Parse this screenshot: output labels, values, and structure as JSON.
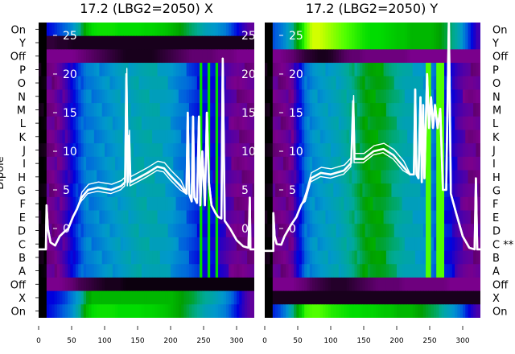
{
  "chart_data": [
    {
      "type": "heatmap",
      "title": "17.2 (LBG2=2050) X",
      "ylabel": "Dipole",
      "row_labels": [
        "On",
        "Y",
        "Off",
        "P",
        "O",
        "N",
        "M",
        "L",
        "K",
        "J",
        "I",
        "H",
        "G",
        "F",
        "E",
        "D",
        "C",
        "B",
        "A",
        "Off",
        "X",
        "On"
      ],
      "x_ticks": [
        0,
        50,
        100,
        150,
        200,
        250,
        300
      ],
      "xlim": [
        0,
        328
      ],
      "overlay_y_ticks": [
        0,
        5,
        10,
        15,
        20,
        25
      ],
      "overlay_ylim": [
        -11.5,
        26.5
      ],
      "profile_x": [
        0,
        10,
        20,
        30,
        40,
        50,
        60,
        70,
        80,
        90,
        100,
        110,
        120,
        130,
        140,
        150,
        160,
        170,
        180,
        190,
        200,
        210,
        220,
        230,
        240,
        250,
        260,
        270,
        280,
        290,
        300,
        310,
        320,
        330
      ],
      "row_profiles": {
        "on": [
          0,
          0.2,
          0.22,
          0.25,
          0.28,
          0.32,
          0.4,
          0.5,
          0.55,
          0.56,
          0.56,
          0.56,
          0.55,
          0.55,
          0.55,
          0.55,
          0.54,
          0.54,
          0.53,
          0.52,
          0.5,
          0.48,
          0.45,
          0.42,
          0.4,
          0.36,
          0.34,
          0.32,
          0.3,
          0.25,
          0.2,
          0.15,
          0.12,
          0.12
        ],
        "y": [
          0,
          0.04,
          0.04,
          0.03,
          0.03,
          0.02,
          0.02,
          0.02,
          0.02,
          0.02,
          0.02,
          0.02,
          0.02,
          0.02,
          0.02,
          0.02,
          0.02,
          0.02,
          0.02,
          0.02,
          0.02,
          0.02,
          0.02,
          0.02,
          0.02,
          0.02,
          0.02,
          0.02,
          0.02,
          0.02,
          0.02,
          0.02,
          0.02,
          0.02
        ],
        "off": [
          0,
          0.1,
          0.1,
          0.1,
          0.1,
          0.1,
          0.09,
          0.08,
          0.07,
          0.06,
          0.05,
          0.04,
          0.03,
          0.02,
          0.02,
          0.02,
          0.02,
          0.02,
          0.03,
          0.04,
          0.05,
          0.06,
          0.07,
          0.08,
          0.08,
          0.08,
          0.08,
          0.09,
          0.09,
          0.09,
          0.1,
          0.1,
          0.1,
          0.1
        ],
        "body": [
          0,
          0.1,
          0.1,
          0.12,
          0.15,
          0.2,
          0.25,
          0.3,
          0.3,
          0.31,
          0.32,
          0.33,
          0.34,
          0.35,
          0.36,
          0.37,
          0.37,
          0.37,
          0.36,
          0.35,
          0.33,
          0.3,
          0.28,
          0.25,
          0.22,
          0.2,
          0.2,
          0.18,
          0.15,
          0.12,
          0.1,
          0.1,
          0.1,
          0.1
        ],
        "off2": [
          0,
          0.1,
          0.1,
          0.1,
          0.09,
          0.08,
          0.06,
          0.05,
          0.04,
          0.03,
          0.02,
          0.02,
          0.02,
          0.01,
          0.01,
          0.01,
          0.01,
          0.01,
          0.01,
          0.01,
          0.01,
          0.01,
          0.01,
          0.01,
          0.01,
          0.01,
          0.01,
          0.01,
          0.01,
          0.01,
          0.01,
          0.01,
          0.01,
          0.01
        ],
        "x": [
          0,
          0.2,
          0.2,
          0.22,
          0.25,
          0.3,
          0.35,
          0.45,
          0.5,
          0.5,
          0.5,
          0.5,
          0.5,
          0.5,
          0.5,
          0.5,
          0.5,
          0.5,
          0.5,
          0.5,
          0.5,
          0.48,
          0.46,
          0.45,
          0.42,
          0.4,
          0.38,
          0.35,
          0.32,
          0.28,
          0.22,
          0.15,
          0.12,
          0.12
        ]
      },
      "row_groups": [
        "on",
        "y",
        "off",
        "body",
        "body",
        "body",
        "body",
        "body",
        "body",
        "body",
        "body",
        "body",
        "body",
        "body",
        "body",
        "body",
        "body",
        "body",
        "body",
        "off2",
        "x",
        "on"
      ],
      "streak_x": [
        244,
        250,
        256,
        262,
        268
      ],
      "streak_value": 0.55,
      "overlay": [
        [
          0,
          -2.7
        ],
        [
          11,
          -2.7
        ],
        [
          12,
          3
        ],
        [
          14,
          0
        ],
        [
          18,
          -1.8
        ],
        [
          25,
          -2.2
        ],
        [
          32,
          -1
        ],
        [
          38,
          -0.5
        ],
        [
          45,
          0
        ],
        [
          52,
          1.5
        ],
        [
          58,
          2.5
        ],
        [
          65,
          4
        ],
        [
          75,
          5
        ],
        [
          90,
          5.3
        ],
        [
          110,
          5
        ],
        [
          125,
          5.5
        ],
        [
          131,
          6
        ],
        [
          133,
          20
        ],
        [
          135,
          6
        ],
        [
          137,
          12
        ],
        [
          139,
          6
        ],
        [
          150,
          6.5
        ],
        [
          165,
          7.2
        ],
        [
          180,
          8
        ],
        [
          190,
          7.8
        ],
        [
          200,
          6.8
        ],
        [
          215,
          5.5
        ],
        [
          224,
          4.5
        ],
        [
          226,
          15
        ],
        [
          228,
          4.5
        ],
        [
          232,
          3.5
        ],
        [
          234,
          14.5
        ],
        [
          236,
          4
        ],
        [
          240,
          3.3
        ],
        [
          243,
          14.5
        ],
        [
          245,
          3
        ],
        [
          248,
          10
        ],
        [
          252,
          3
        ],
        [
          255,
          15
        ],
        [
          258,
          6
        ],
        [
          262,
          3
        ],
        [
          268,
          2
        ],
        [
          272,
          1.5
        ],
        [
          277,
          1.3
        ],
        [
          279,
          22
        ],
        [
          282,
          1
        ],
        [
          290,
          0
        ],
        [
          300,
          -1.5
        ],
        [
          310,
          -2.3
        ],
        [
          318,
          -2.5
        ],
        [
          320,
          4
        ],
        [
          321,
          -2.7
        ],
        [
          328,
          -2.7
        ]
      ]
    },
    {
      "type": "heatmap",
      "title": "17.2 (LBG2=2050) Y",
      "row_labels": [
        "On",
        "Y",
        "Off",
        "P",
        "O",
        "N",
        "M",
        "L",
        "K",
        "J",
        "I",
        "H",
        "G",
        "F",
        "E",
        "D",
        "C **",
        "B",
        "A",
        "Off",
        "X",
        "On"
      ],
      "x_ticks": [
        0,
        50,
        100,
        150,
        200,
        250,
        300
      ],
      "xlim": [
        0,
        328
      ],
      "overlay_y_ticks": [
        0,
        5,
        10,
        15,
        20,
        25
      ],
      "overlay_ylim": [
        -11.5,
        26.5
      ],
      "profile_x": [
        0,
        10,
        20,
        30,
        40,
        50,
        60,
        70,
        80,
        90,
        100,
        110,
        120,
        130,
        140,
        150,
        160,
        170,
        180,
        190,
        200,
        210,
        220,
        230,
        240,
        250,
        260,
        270,
        280,
        290,
        300,
        310,
        320,
        330
      ],
      "row_profiles": {
        "on": [
          0,
          0.25,
          0.28,
          0.32,
          0.4,
          0.5,
          0.62,
          0.7,
          0.7,
          0.68,
          0.66,
          0.64,
          0.62,
          0.6,
          0.58,
          0.56,
          0.55,
          0.55,
          0.54,
          0.53,
          0.52,
          0.52,
          0.5,
          0.5,
          0.5,
          0.5,
          0.48,
          0.45,
          0.42,
          0.38,
          0.3,
          0.22,
          0.15,
          0.15
        ],
        "y": [
          0,
          0.25,
          0.28,
          0.32,
          0.4,
          0.5,
          0.62,
          0.7,
          0.7,
          0.68,
          0.66,
          0.64,
          0.62,
          0.6,
          0.58,
          0.56,
          0.55,
          0.55,
          0.54,
          0.53,
          0.52,
          0.52,
          0.5,
          0.5,
          0.5,
          0.5,
          0.48,
          0.45,
          0.42,
          0.38,
          0.3,
          0.22,
          0.15,
          0.15
        ],
        "off": [
          0,
          0.1,
          0.1,
          0.09,
          0.08,
          0.06,
          0.04,
          0.03,
          0.02,
          0.02,
          0.03,
          0.05,
          0.07,
          0.08,
          0.08,
          0.09,
          0.09,
          0.09,
          0.09,
          0.09,
          0.09,
          0.09,
          0.1,
          0.1,
          0.1,
          0.1,
          0.1,
          0.1,
          0.1,
          0.1,
          0.1,
          0.1,
          0.1,
          0.1
        ],
        "body": [
          0,
          0.1,
          0.1,
          0.1,
          0.12,
          0.2,
          0.28,
          0.32,
          0.33,
          0.34,
          0.35,
          0.36,
          0.38,
          0.4,
          0.43,
          0.46,
          0.47,
          0.47,
          0.45,
          0.42,
          0.4,
          0.37,
          0.36,
          0.35,
          0.33,
          0.3,
          0.25,
          0.22,
          0.2,
          0.15,
          0.12,
          0.1,
          0.1,
          0.1
        ],
        "off2": [
          0,
          0.1,
          0.1,
          0.1,
          0.1,
          0.09,
          0.08,
          0.06,
          0.05,
          0.04,
          0.03,
          0.03,
          0.03,
          0.04,
          0.05,
          0.06,
          0.07,
          0.08,
          0.08,
          0.08,
          0.08,
          0.09,
          0.09,
          0.09,
          0.09,
          0.09,
          0.09,
          0.09,
          0.1,
          0.1,
          0.1,
          0.1,
          0.1,
          0.1
        ],
        "x": [
          0,
          0.02,
          0.02,
          0.02,
          0.02,
          0.02,
          0.02,
          0.02,
          0.02,
          0.02,
          0.02,
          0.02,
          0.02,
          0.02,
          0.02,
          0.02,
          0.02,
          0.02,
          0.02,
          0.02,
          0.02,
          0.02,
          0.02,
          0.02,
          0.02,
          0.02,
          0.02,
          0.02,
          0.02,
          0.02,
          0.02,
          0.02,
          0.02,
          0.02
        ],
        "on2": [
          0,
          0.22,
          0.25,
          0.3,
          0.4,
          0.5,
          0.6,
          0.62,
          0.62,
          0.6,
          0.58,
          0.57,
          0.56,
          0.55,
          0.55,
          0.54,
          0.54,
          0.53,
          0.52,
          0.52,
          0.5,
          0.5,
          0.5,
          0.48,
          0.46,
          0.44,
          0.42,
          0.38,
          0.34,
          0.3,
          0.25,
          0.18,
          0.14,
          0.14
        ]
      },
      "row_groups": [
        "on",
        "y",
        "off",
        "body",
        "body",
        "body",
        "body",
        "body",
        "body",
        "body",
        "body",
        "body",
        "body",
        "body",
        "body",
        "body",
        "body",
        "body",
        "body",
        "off2",
        "x",
        "on2"
      ],
      "streak_x": [
        244,
        249,
        254,
        259,
        264,
        269
      ],
      "streak_value": 0.62,
      "overlay": [
        [
          0,
          -2.9
        ],
        [
          13,
          -2.9
        ],
        [
          13,
          2
        ],
        [
          15,
          -1
        ],
        [
          18,
          -2
        ],
        [
          25,
          -2.1
        ],
        [
          30,
          -1
        ],
        [
          40,
          0.5
        ],
        [
          48,
          1.5
        ],
        [
          55,
          3
        ],
        [
          62,
          4
        ],
        [
          70,
          6.5
        ],
        [
          85,
          7.2
        ],
        [
          100,
          7
        ],
        [
          120,
          7.5
        ],
        [
          131,
          8.5
        ],
        [
          134,
          16.5
        ],
        [
          136,
          9
        ],
        [
          150,
          9
        ],
        [
          165,
          10
        ],
        [
          180,
          10.3
        ],
        [
          195,
          9.5
        ],
        [
          210,
          8
        ],
        [
          220,
          7
        ],
        [
          226,
          7
        ],
        [
          228,
          18
        ],
        [
          230,
          7
        ],
        [
          233,
          6.5
        ],
        [
          236,
          17
        ],
        [
          238,
          6
        ],
        [
          240,
          16
        ],
        [
          242,
          6.5
        ],
        [
          246,
          20
        ],
        [
          249,
          13
        ],
        [
          252,
          17
        ],
        [
          255,
          13
        ],
        [
          258,
          16
        ],
        [
          262,
          13
        ],
        [
          266,
          15.5
        ],
        [
          270,
          5
        ],
        [
          275,
          5
        ],
        [
          279,
          27
        ],
        [
          282,
          4.5
        ],
        [
          290,
          2
        ],
        [
          300,
          -1
        ],
        [
          310,
          -2.5
        ],
        [
          318,
          -2.7
        ],
        [
          320,
          6.5
        ],
        [
          322,
          -2.7
        ],
        [
          328,
          -2.7
        ]
      ]
    }
  ]
}
